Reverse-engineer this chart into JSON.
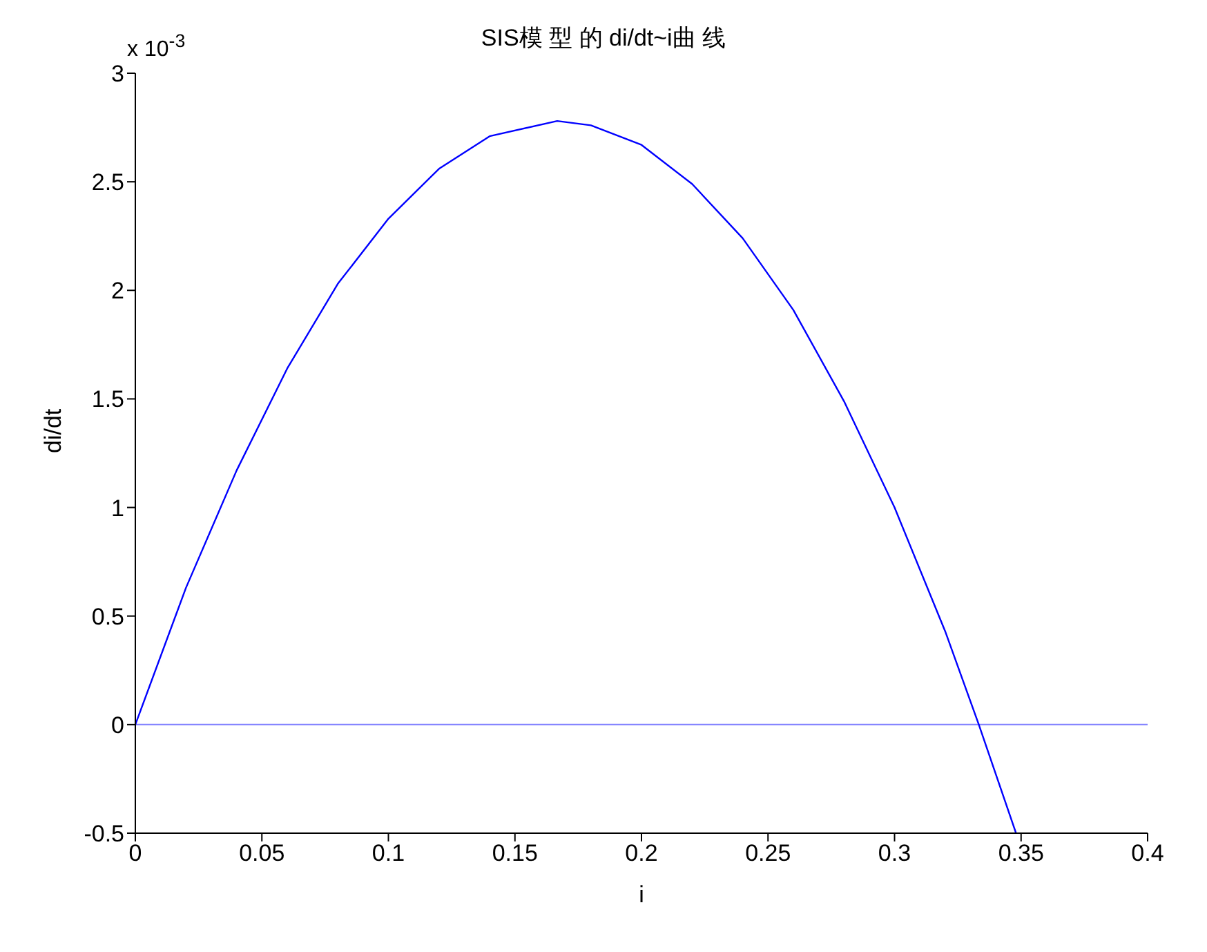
{
  "chart_data": {
    "type": "line",
    "title": "SIS模 型 的 di/dt~i曲 线",
    "xlabel": "i",
    "ylabel": "di/dt",
    "annotations": [
      "x 10$^{-3}$"
    ],
    "x": [
      0,
      0.02,
      0.04,
      0.06,
      0.08,
      0.1,
      0.12,
      0.14,
      0.1667,
      0.18,
      0.2,
      0.22,
      0.24,
      0.26,
      0.28,
      0.3,
      0.32,
      0.3333,
      0.348
    ],
    "series": [
      {
        "color": "#0000ff",
        "values": [
          0,
          0.63,
          1.17,
          1.64,
          2.03,
          2.33,
          2.56,
          2.71,
          2.78,
          2.76,
          2.67,
          2.49,
          2.24,
          1.91,
          1.49,
          1.0,
          0.43,
          0,
          -0.5
        ]
      }
    ],
    "xlim": [
      0,
      0.4
    ],
    "xticks": [
      0,
      0.05,
      0.1,
      0.15,
      0.2,
      0.25,
      0.3,
      0.35,
      0.4
    ],
    "ylim": [
      -0.5,
      3
    ],
    "yticks": [
      -0.5,
      0,
      0.5,
      1,
      1.5,
      2,
      2.5,
      3
    ],
    "ref_lines": [
      {
        "axis": "y",
        "value": 0,
        "color": "#8080ff"
      }
    ],
    "grid": false,
    "legend": false,
    "marker": "none",
    "line_style": "solid"
  }
}
